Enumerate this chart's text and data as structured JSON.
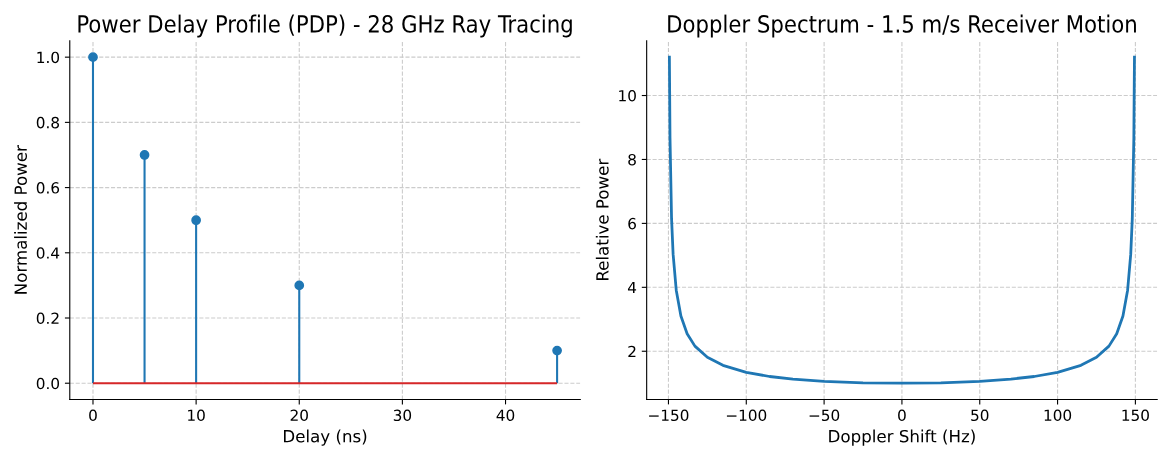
{
  "chart_data": [
    {
      "type": "lollipop",
      "title": "Power Delay Profile (PDP) - 28 GHz Ray Tracing",
      "xlabel": "Delay (ns)",
      "ylabel": "Normalized Power",
      "x": [
        0,
        5,
        10,
        20,
        45
      ],
      "series": [
        {
          "color": "#1f77b4",
          "values": [
            1.0,
            0.7,
            0.5,
            0.3,
            0.1
          ]
        }
      ],
      "xlim": [
        -2.25,
        47.25
      ],
      "xticks": [
        0,
        10,
        20,
        30,
        40
      ],
      "ylim": [
        -0.05,
        1.05
      ],
      "yticks": [
        {
          "value": 0,
          "label": "0.0"
        },
        0.2,
        0.4,
        0.6,
        0.8,
        {
          "value": 1,
          "label": "1.0"
        }
      ],
      "grid": true,
      "marker": "circle",
      "ref_lines": [
        {
          "axis": "y",
          "value": 0,
          "color": "#d62728"
        }
      ]
    },
    {
      "type": "line",
      "title": "Doppler Spectrum - 1.5 m/s Receiver Motion",
      "xlabel": "Doppler Shift (Hz)",
      "ylabel": "Relative Power",
      "x": [
        -149.4,
        -149,
        -148,
        -147,
        -145,
        -142,
        -138,
        -133,
        -125,
        -115,
        -100,
        -85,
        -70,
        -50,
        -25,
        0,
        25,
        50,
        70,
        85,
        100,
        115,
        125,
        133,
        138,
        142,
        145,
        147,
        148,
        149,
        149.4
      ],
      "series": [
        {
          "color": "#1f77b4",
          "values": [
            11.2,
            8.67,
            6.14,
            5.03,
            3.91,
            3.1,
            2.55,
            2.16,
            1.81,
            1.56,
            1.34,
            1.21,
            1.13,
            1.06,
            1.01,
            1.0,
            1.01,
            1.06,
            1.13,
            1.21,
            1.34,
            1.56,
            1.81,
            2.16,
            2.55,
            3.1,
            3.91,
            5.03,
            6.14,
            8.67,
            11.2
          ]
        }
      ],
      "xlim": [
        -164,
        164
      ],
      "xticks": [
        {
          "value": -150,
          "label": "−150"
        },
        {
          "value": -100,
          "label": "−100"
        },
        {
          "value": -50,
          "label": "−50"
        },
        0,
        50,
        100,
        150
      ],
      "ylim": [
        0.49,
        11.71
      ],
      "yticks": [
        2,
        4,
        6,
        8,
        10
      ],
      "grid": true,
      "marker": "none",
      "line_style": "solid"
    }
  ]
}
